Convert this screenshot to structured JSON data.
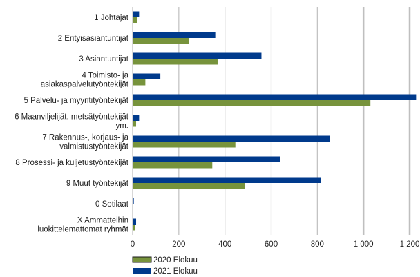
{
  "chart_data": {
    "type": "bar",
    "orientation": "horizontal",
    "categories": [
      [
        "1 Johtajat"
      ],
      [
        "2 Erityisasiantuntijat"
      ],
      [
        "3 Asiantuntijat"
      ],
      [
        "4 Toimisto- ja",
        "asiakaspalvelutyöntekijät"
      ],
      [
        "5 Palvelu- ja myyntityöntekijät"
      ],
      [
        "6 Maanviljelijät, metsätyöntekijät",
        "ym."
      ],
      [
        "7 Rakennus-, korjaus- ja",
        "valmistustyöntekijät"
      ],
      [
        "8 Prosessi- ja kuljetustyöntekijät"
      ],
      [
        "9 Muut työntekijät"
      ],
      [
        "0 Sotilaat"
      ],
      [
        "X Ammatteihin",
        "luokittelemattomat ryhmät"
      ]
    ],
    "series": [
      {
        "name": "2020 Elokuu",
        "color": "#77933c",
        "values": [
          18,
          245,
          368,
          55,
          1030,
          15,
          445,
          345,
          485,
          3,
          12
        ]
      },
      {
        "name": "2021 Elokuu",
        "color": "#003a8c",
        "values": [
          28,
          358,
          558,
          120,
          1228,
          28,
          855,
          640,
          815,
          5,
          15
        ]
      }
    ],
    "xlim": [
      0,
      1260
    ],
    "xticks": [
      0,
      200,
      400,
      600,
      800,
      1000,
      1200
    ],
    "xtick_labels": [
      "0",
      "200",
      "400",
      "600",
      "800",
      "1 000",
      "1 200"
    ],
    "grid": true,
    "legend_position": "bottom-left"
  }
}
